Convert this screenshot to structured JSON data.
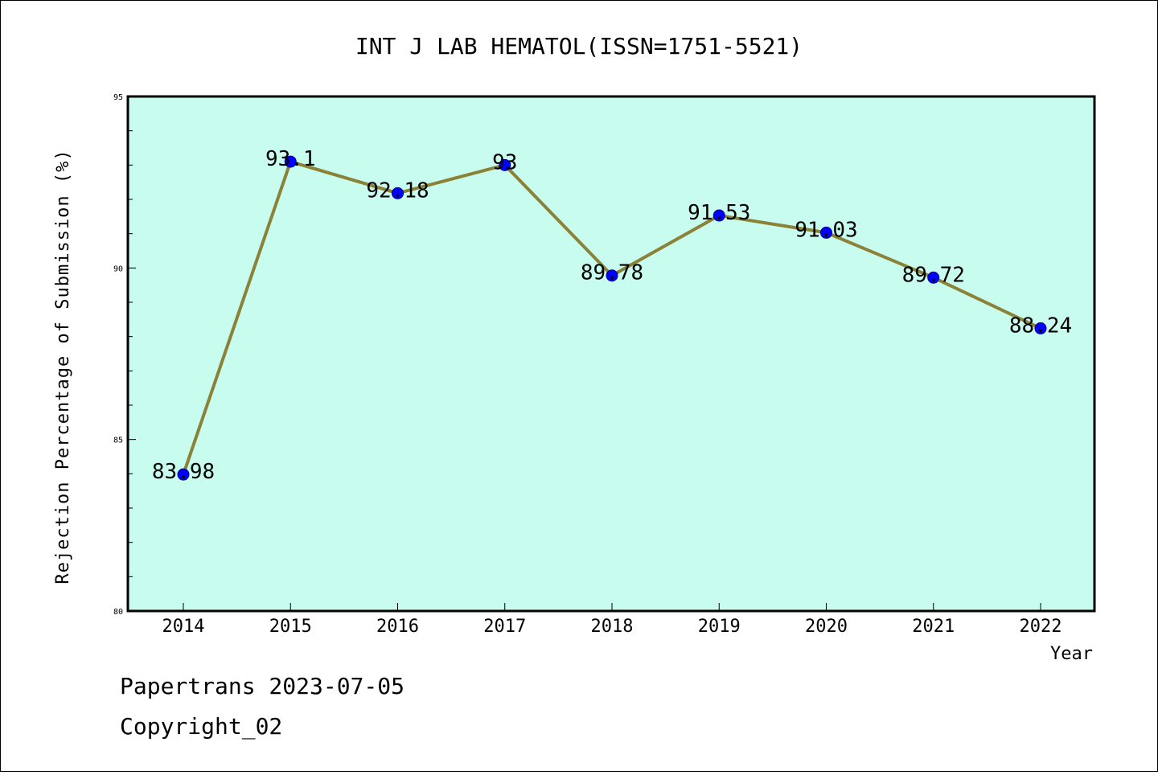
{
  "chart_data": {
    "type": "line",
    "title": "INT J LAB HEMATOL(ISSN=1751-5521)",
    "xlabel": "Year",
    "ylabel": "Rejection Percentage of Submission (%)",
    "x": [
      "2014",
      "2015",
      "2016",
      "2017",
      "2018",
      "2019",
      "2020",
      "2021",
      "2022"
    ],
    "series": [
      {
        "values": [
          83.98,
          93.1,
          92.18,
          93,
          89.78,
          91.53,
          91.03,
          89.72,
          88.24
        ]
      }
    ],
    "data_labels": [
      "83.98",
      "93.1",
      "92.18",
      "93",
      "89.78",
      "91.53",
      "91.03",
      "89.72",
      "88.24"
    ],
    "ylim": [
      80,
      95
    ],
    "yticks": [
      80,
      85,
      90,
      95
    ],
    "grid": false,
    "colors": {
      "plot_background": "#c8fcee",
      "line": "#8b8238",
      "marker": "#0000ff"
    }
  },
  "footer": {
    "line1": "Papertrans 2023-07-05",
    "line2": "Copyright_02"
  }
}
